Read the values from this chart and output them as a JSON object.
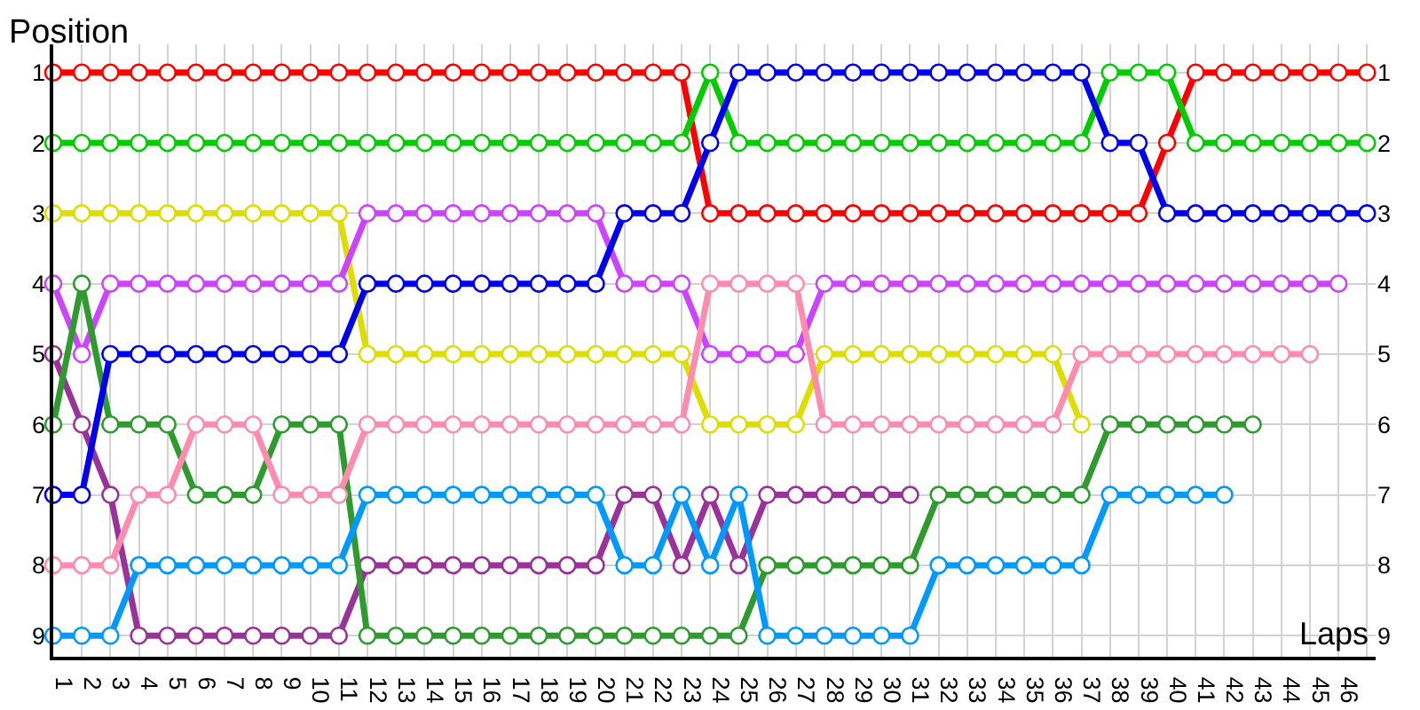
{
  "chart_data": {
    "type": "line",
    "xlabel": "Laps",
    "ylabel": "Position",
    "x": [
      0,
      1,
      2,
      3,
      4,
      5,
      6,
      7,
      8,
      9,
      10,
      11,
      12,
      13,
      14,
      15,
      16,
      17,
      18,
      19,
      20,
      21,
      22,
      23,
      24,
      25,
      26,
      27,
      28,
      29,
      30,
      31,
      32,
      33,
      34,
      35,
      36,
      37,
      38,
      39,
      40,
      41,
      42,
      43,
      44,
      45,
      46
    ],
    "xlim": [
      0,
      46.3
    ],
    "xticks": [
      {
        "value": 0.5,
        "label": "1"
      },
      {
        "value": 1.5,
        "label": "2"
      },
      {
        "value": 2.5,
        "label": "3"
      },
      {
        "value": 3.5,
        "label": "4"
      },
      {
        "value": 4.5,
        "label": "5"
      },
      {
        "value": 5.5,
        "label": "6"
      },
      {
        "value": 6.5,
        "label": "7"
      },
      {
        "value": 7.5,
        "label": "8"
      },
      {
        "value": 8.5,
        "label": "9"
      },
      {
        "value": 9.5,
        "label": "10"
      },
      {
        "value": 10.5,
        "label": "11"
      },
      {
        "value": 11.5,
        "label": "12"
      },
      {
        "value": 12.5,
        "label": "13"
      },
      {
        "value": 13.5,
        "label": "14"
      },
      {
        "value": 14.5,
        "label": "15"
      },
      {
        "value": 15.5,
        "label": "16"
      },
      {
        "value": 16.5,
        "label": "17"
      },
      {
        "value": 17.5,
        "label": "18"
      },
      {
        "value": 18.5,
        "label": "19"
      },
      {
        "value": 19.5,
        "label": "20"
      },
      {
        "value": 20.5,
        "label": "21"
      },
      {
        "value": 21.5,
        "label": "22"
      },
      {
        "value": 22.5,
        "label": "23"
      },
      {
        "value": 23.5,
        "label": "24"
      },
      {
        "value": 24.5,
        "label": "25"
      },
      {
        "value": 25.5,
        "label": "26"
      },
      {
        "value": 26.5,
        "label": "27"
      },
      {
        "value": 27.5,
        "label": "28"
      },
      {
        "value": 28.5,
        "label": "29"
      },
      {
        "value": 29.5,
        "label": "30"
      },
      {
        "value": 30.5,
        "label": "31"
      },
      {
        "value": 31.5,
        "label": "32"
      },
      {
        "value": 32.5,
        "label": "33"
      },
      {
        "value": 33.5,
        "label": "34"
      },
      {
        "value": 34.5,
        "label": "35"
      },
      {
        "value": 35.5,
        "label": "36"
      },
      {
        "value": 36.5,
        "label": "37"
      },
      {
        "value": 37.5,
        "label": "38"
      },
      {
        "value": 38.5,
        "label": "39"
      },
      {
        "value": 39.5,
        "label": "40"
      },
      {
        "value": 40.5,
        "label": "41"
      },
      {
        "value": 41.5,
        "label": "42"
      },
      {
        "value": 42.5,
        "label": "43"
      },
      {
        "value": 43.5,
        "label": "44"
      },
      {
        "value": 44.5,
        "label": "45"
      },
      {
        "value": 45.5,
        "label": "46"
      }
    ],
    "ylim": [
      9.3,
      0.6
    ],
    "yticks": [
      1,
      2,
      3,
      4,
      5,
      6,
      7,
      8,
      9
    ],
    "y2lim": [
      9.3,
      0.6
    ],
    "y2ticks": [
      1,
      2,
      3,
      4,
      5,
      6,
      7,
      8,
      9
    ],
    "grid": true,
    "marker": "circle",
    "line_style": "solid",
    "series": [
      {
        "color": "#ff0000",
        "values": [
          1,
          1,
          1,
          1,
          1,
          1,
          1,
          1,
          1,
          1,
          1,
          1,
          1,
          1,
          1,
          1,
          1,
          1,
          1,
          1,
          1,
          1,
          1,
          3,
          3,
          3,
          3,
          3,
          3,
          3,
          3,
          3,
          3,
          3,
          3,
          3,
          3,
          3,
          3,
          2,
          1,
          1,
          1,
          1,
          1,
          1,
          1
        ]
      },
      {
        "color": "#00cc00",
        "values": [
          2,
          2,
          2,
          2,
          2,
          2,
          2,
          2,
          2,
          2,
          2,
          2,
          2,
          2,
          2,
          2,
          2,
          2,
          2,
          2,
          2,
          2,
          2,
          1,
          2,
          2,
          2,
          2,
          2,
          2,
          2,
          2,
          2,
          2,
          2,
          2,
          2,
          1,
          1,
          1,
          2,
          2,
          2,
          2,
          2,
          2,
          2
        ]
      },
      {
        "color": "#dddd00",
        "values": [
          3,
          3,
          3,
          3,
          3,
          3,
          3,
          3,
          3,
          3,
          3,
          5,
          5,
          5,
          5,
          5,
          5,
          5,
          5,
          5,
          5,
          5,
          5,
          6,
          6,
          6,
          6,
          5,
          5,
          5,
          5,
          5,
          5,
          5,
          5,
          5,
          6,
          null,
          null,
          null,
          null,
          null,
          null,
          null,
          null,
          null,
          null
        ]
      },
      {
        "color": "#cc44ff",
        "values": [
          4,
          5,
          4,
          4,
          4,
          4,
          4,
          4,
          4,
          4,
          4,
          3,
          3,
          3,
          3,
          3,
          3,
          3,
          3,
          3,
          4,
          4,
          4,
          5,
          5,
          5,
          5,
          4,
          4,
          4,
          4,
          4,
          4,
          4,
          4,
          4,
          4,
          4,
          4,
          4,
          4,
          4,
          4,
          4,
          4,
          4,
          null
        ]
      },
      {
        "color": "#993399",
        "values": [
          5,
          6,
          7,
          9,
          9,
          9,
          9,
          9,
          9,
          9,
          9,
          8,
          8,
          8,
          8,
          8,
          8,
          8,
          8,
          8,
          7,
          7,
          8,
          7,
          8,
          7,
          7,
          7,
          7,
          7,
          7,
          null,
          null,
          null,
          null,
          null,
          null,
          null,
          null,
          null,
          null,
          null,
          null,
          null,
          null,
          null,
          null
        ]
      },
      {
        "color": "#2e9b2e",
        "values": [
          6,
          4,
          6,
          6,
          6,
          7,
          7,
          7,
          6,
          6,
          6,
          9,
          9,
          9,
          9,
          9,
          9,
          9,
          9,
          9,
          9,
          9,
          9,
          9,
          9,
          8,
          8,
          8,
          8,
          8,
          8,
          7,
          7,
          7,
          7,
          7,
          7,
          6,
          6,
          6,
          6,
          6,
          6,
          null,
          null,
          null,
          null
        ]
      },
      {
        "color": "#0000ee",
        "values": [
          7,
          7,
          5,
          5,
          5,
          5,
          5,
          5,
          5,
          5,
          5,
          4,
          4,
          4,
          4,
          4,
          4,
          4,
          4,
          4,
          3,
          3,
          3,
          2,
          1,
          1,
          1,
          1,
          1,
          1,
          1,
          1,
          1,
          1,
          1,
          1,
          1,
          2,
          2,
          3,
          3,
          3,
          3,
          3,
          3,
          3,
          3
        ]
      },
      {
        "color": "#ff8caf",
        "values": [
          8,
          8,
          8,
          7,
          7,
          6,
          6,
          6,
          7,
          7,
          7,
          6,
          6,
          6,
          6,
          6,
          6,
          6,
          6,
          6,
          6,
          6,
          6,
          4,
          4,
          4,
          4,
          6,
          6,
          6,
          6,
          6,
          6,
          6,
          6,
          6,
          5,
          5,
          5,
          5,
          5,
          5,
          5,
          5,
          5,
          null,
          null
        ]
      },
      {
        "color": "#0099ff",
        "values": [
          9,
          9,
          9,
          8,
          8,
          8,
          8,
          8,
          8,
          8,
          8,
          7,
          7,
          7,
          7,
          7,
          7,
          7,
          7,
          7,
          8,
          8,
          7,
          8,
          7,
          9,
          9,
          9,
          9,
          9,
          9,
          8,
          8,
          8,
          8,
          8,
          8,
          7,
          7,
          7,
          7,
          7,
          null,
          null,
          null,
          null,
          null
        ]
      }
    ]
  }
}
